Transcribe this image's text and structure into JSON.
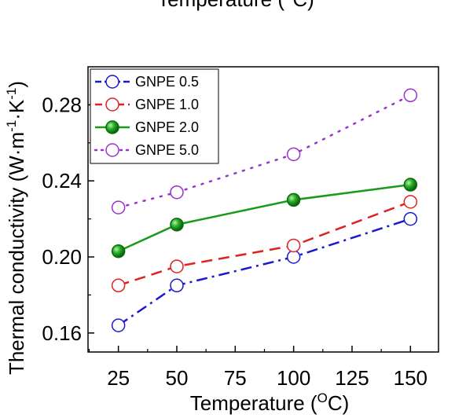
{
  "chart_data": {
    "type": "line",
    "top_fragment": "Temperature (°C)",
    "xlabel": {
      "text": "Temperature (",
      "sup": "O",
      "tail": "C)"
    },
    "ylabel": {
      "pre": "Thermal conductivity (W·m",
      "sup1": "-1",
      "mid": "·K",
      "sup2": "-1",
      "post": ")"
    },
    "xlim": [
      12,
      162
    ],
    "ylim": [
      0.15,
      0.3
    ],
    "xticks": [
      25,
      50,
      75,
      100,
      125,
      150
    ],
    "xtick_labels": [
      "25",
      "50",
      "75",
      "100",
      "125",
      "150"
    ],
    "yticks": [
      0.16,
      0.2,
      0.24,
      0.28
    ],
    "ytick_labels": [
      "0.16",
      "0.20",
      "0.24",
      "0.28"
    ],
    "legend_position": "top-left",
    "series": [
      {
        "name": "GNPE 0.5",
        "color": "#1a1acc",
        "line_style": "dashdot",
        "marker": "open-circle",
        "x": [
          25,
          50,
          100,
          150
        ],
        "y": [
          0.164,
          0.185,
          0.2,
          0.22
        ]
      },
      {
        "name": "GNPE 1.0",
        "color": "#dd2222",
        "line_style": "dashed",
        "marker": "open-circle",
        "x": [
          25,
          50,
          100,
          150
        ],
        "y": [
          0.185,
          0.195,
          0.206,
          0.229
        ]
      },
      {
        "name": "GNPE 2.0",
        "color": "#1a9a1a",
        "line_style": "solid",
        "marker": "filled-circle",
        "x": [
          25,
          50,
          100,
          150
        ],
        "y": [
          0.203,
          0.217,
          0.23,
          0.238
        ]
      },
      {
        "name": "GNPE 5.0",
        "color": "#9933cc",
        "line_style": "dotted",
        "marker": "open-circle",
        "x": [
          25,
          50,
          100,
          150
        ],
        "y": [
          0.226,
          0.234,
          0.254,
          0.285
        ]
      }
    ]
  }
}
